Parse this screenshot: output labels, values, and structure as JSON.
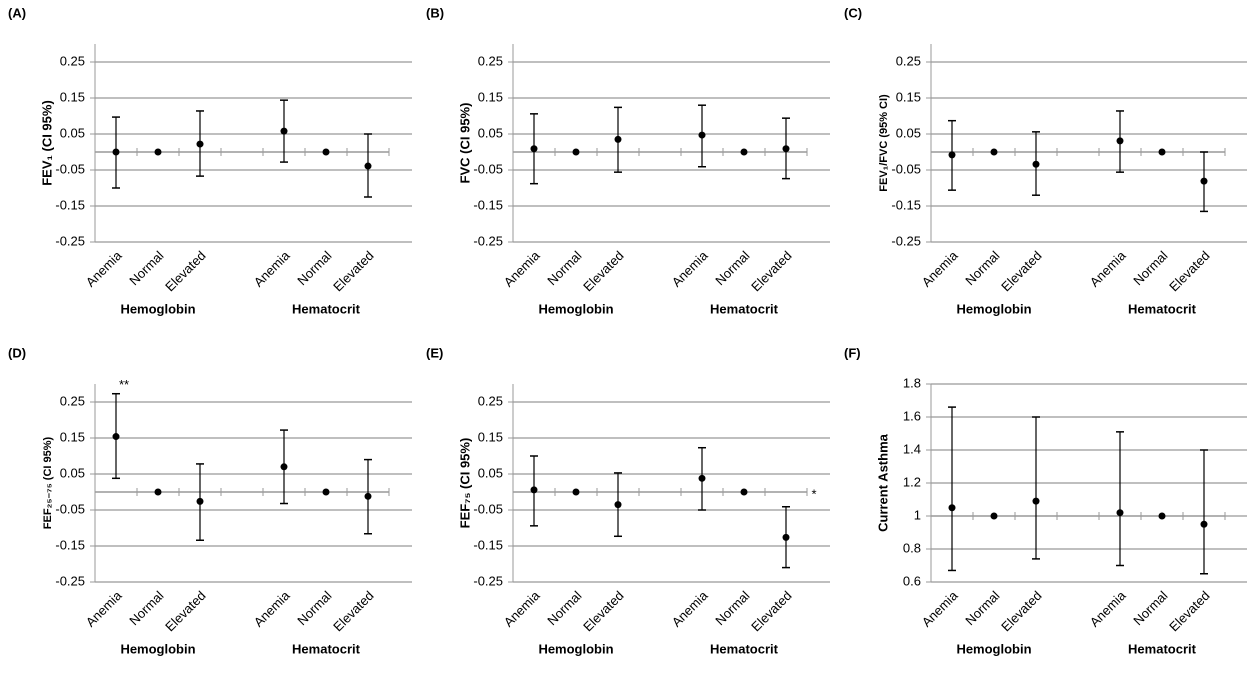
{
  "chart_data": [
    {
      "type": "errorbar",
      "panel_label": "(A)",
      "y_label": "FEV₁ (CI 95%)",
      "categories": [
        "Anemia",
        "Normal",
        "Elevated",
        null,
        "Anemia",
        "Normal",
        "Elevated"
      ],
      "group_labels": [
        "Hemoglobin",
        "Hematocrit"
      ],
      "values": [
        0.0,
        0,
        0.022,
        null,
        0.058,
        0,
        -0.039
      ],
      "lower": [
        -0.1,
        null,
        -0.067,
        null,
        -0.028,
        null,
        -0.125
      ],
      "upper": [
        0.097,
        null,
        0.114,
        null,
        0.144,
        null,
        0.05
      ],
      "ylim": [
        -0.25,
        0.3
      ],
      "yticks": [
        -0.25,
        -0.15,
        -0.05,
        0.05,
        0.15,
        0.25
      ],
      "x_axis_at": 0,
      "grid": true,
      "color": "#000000"
    },
    {
      "type": "errorbar",
      "panel_label": "(B)",
      "y_label": "FVC (CI 95%)",
      "categories": [
        "Anemia",
        "Normal",
        "Elevated",
        null,
        "Anemia",
        "Normal",
        "Elevated"
      ],
      "group_labels": [
        "Hemoglobin",
        "Hematocrit"
      ],
      "values": [
        0.009,
        0,
        0.035,
        null,
        0.047,
        0,
        0.009
      ],
      "lower": [
        -0.088,
        null,
        -0.056,
        null,
        -0.041,
        null,
        -0.074
      ],
      "upper": [
        0.106,
        null,
        0.124,
        null,
        0.13,
        null,
        0.094
      ],
      "ylim": [
        -0.25,
        0.3
      ],
      "yticks": [
        -0.25,
        -0.15,
        -0.05,
        0.05,
        0.15,
        0.25
      ],
      "x_axis_at": 0,
      "grid": true,
      "color": "#000000"
    },
    {
      "type": "errorbar",
      "panel_label": "(C)",
      "y_label": "FEV₁/FVC (95% CI)",
      "categories": [
        "Anemia",
        "Normal",
        "Elevated",
        null,
        "Anemia",
        "Normal",
        "Elevated"
      ],
      "group_labels": [
        "Hemoglobin",
        "Hematocrit"
      ],
      "values": [
        -0.008,
        0,
        -0.034,
        null,
        0.031,
        0,
        -0.081
      ],
      "lower": [
        -0.106,
        null,
        -0.12,
        null,
        -0.056,
        null,
        -0.165
      ],
      "upper": [
        0.087,
        null,
        0.056,
        null,
        0.114,
        null,
        0.0
      ],
      "ylim": [
        -0.25,
        0.3
      ],
      "yticks": [
        -0.25,
        -0.15,
        -0.05,
        0.05,
        0.15,
        0.25
      ],
      "x_axis_at": 0,
      "grid": true,
      "color": "#000000"
    },
    {
      "type": "errorbar",
      "panel_label": "(D)",
      "y_label": "FEF₂₅₋₇₅ (CI 95%)",
      "annotation": "**",
      "categories": [
        "Anemia",
        "Normal",
        "Elevated",
        null,
        "Anemia",
        "Normal",
        "Elevated"
      ],
      "group_labels": [
        "Hemoglobin",
        "Hematocrit"
      ],
      "values": [
        0.154,
        0,
        -0.026,
        null,
        0.07,
        0,
        -0.012
      ],
      "lower": [
        0.038,
        null,
        -0.134,
        null,
        -0.032,
        null,
        -0.116
      ],
      "upper": [
        0.273,
        null,
        0.078,
        null,
        0.172,
        null,
        0.09
      ],
      "ylim": [
        -0.25,
        0.3
      ],
      "yticks": [
        -0.25,
        -0.15,
        -0.05,
        0.05,
        0.15,
        0.25
      ],
      "x_axis_at": 0,
      "grid": true,
      "color": "#000000"
    },
    {
      "type": "errorbar",
      "panel_label": "(E)",
      "y_label": "FEF₇₅ (CI 95%)",
      "annotation": "*",
      "categories": [
        "Anemia",
        "Normal",
        "Elevated",
        null,
        "Anemia",
        "Normal",
        "Elevated"
      ],
      "group_labels": [
        "Hemoglobin",
        "Hematocrit"
      ],
      "values": [
        0.006,
        0,
        -0.035,
        null,
        0.038,
        0,
        -0.126
      ],
      "lower": [
        -0.094,
        null,
        -0.123,
        null,
        -0.05,
        null,
        -0.21
      ],
      "upper": [
        0.1,
        null,
        0.053,
        null,
        0.123,
        null,
        -0.041
      ],
      "ylim": [
        -0.25,
        0.3
      ],
      "yticks": [
        -0.25,
        -0.15,
        -0.05,
        0.05,
        0.15,
        0.25
      ],
      "x_axis_at": 0,
      "grid": true,
      "color": "#000000"
    },
    {
      "type": "errorbar",
      "panel_label": "(F)",
      "y_label": "Current Asthma",
      "categories": [
        "Anemia",
        "Normal",
        "Elevated",
        null,
        "Anemia",
        "Normal",
        "Elevated"
      ],
      "group_labels": [
        "Hemoglobin",
        "Hematocrit"
      ],
      "values": [
        1.05,
        1,
        1.09,
        null,
        1.02,
        1,
        0.95
      ],
      "lower": [
        0.67,
        null,
        0.74,
        null,
        0.7,
        null,
        0.65
      ],
      "upper": [
        1.66,
        null,
        1.6,
        null,
        1.51,
        null,
        1.4
      ],
      "ylim": [
        0.6,
        1.8
      ],
      "yticks": [
        0.6,
        0.8,
        1,
        1.2,
        1.4,
        1.6,
        1.8
      ],
      "x_axis_at": 1,
      "grid": true,
      "color": "#000000"
    }
  ]
}
